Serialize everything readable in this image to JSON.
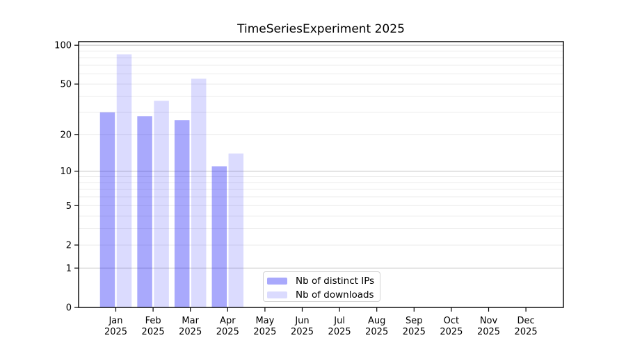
{
  "title": "TimeSeriesExperiment 2025",
  "colors": {
    "ips_bar": "rgba(10,10,245,0.35)",
    "downloads_bar": "rgba(10,10,245,0.145)",
    "grid_major": "#c9c9c9",
    "grid_minor": "#ebebeb",
    "axis": "#000000",
    "legend_border": "#d2d2d2",
    "text": "#000000"
  },
  "legend": {
    "position": "bottom-center-inside",
    "items": [
      {
        "label": "Nb of distinct IPs"
      },
      {
        "label": "Nb of downloads"
      }
    ]
  },
  "chart_data": {
    "type": "bar",
    "title": "TimeSeriesExperiment 2025",
    "categories": [
      "Jan 2025",
      "Feb 2025",
      "Mar 2025",
      "Apr 2025",
      "May 2025",
      "Jun 2025",
      "Jul 2025",
      "Aug 2025",
      "Sep 2025",
      "Oct 2025",
      "Nov 2025",
      "Dec 2025"
    ],
    "series": [
      {
        "name": "Nb of distinct IPs",
        "color_key": "ips_bar",
        "values": [
          30,
          28,
          26,
          11,
          0,
          0,
          0,
          0,
          0,
          0,
          0,
          0
        ]
      },
      {
        "name": "Nb of downloads",
        "color_key": "downloads_bar",
        "values": [
          85,
          37,
          55,
          14,
          0,
          0,
          0,
          0,
          0,
          0,
          0,
          0
        ]
      }
    ],
    "xlabel": "",
    "ylabel": "",
    "y_scale": "log1p",
    "ylim": [
      0,
      100
    ],
    "y_ticks": [
      0,
      1,
      2,
      5,
      10,
      20,
      50,
      100
    ],
    "y_grid_major": [
      1,
      10,
      100
    ],
    "y_grid_minor": [
      2,
      3,
      4,
      5,
      6,
      7,
      8,
      9,
      20,
      30,
      40,
      50,
      60,
      70,
      80,
      90
    ],
    "grid": "horizontal",
    "legend_position": "bottom-center-inside"
  }
}
